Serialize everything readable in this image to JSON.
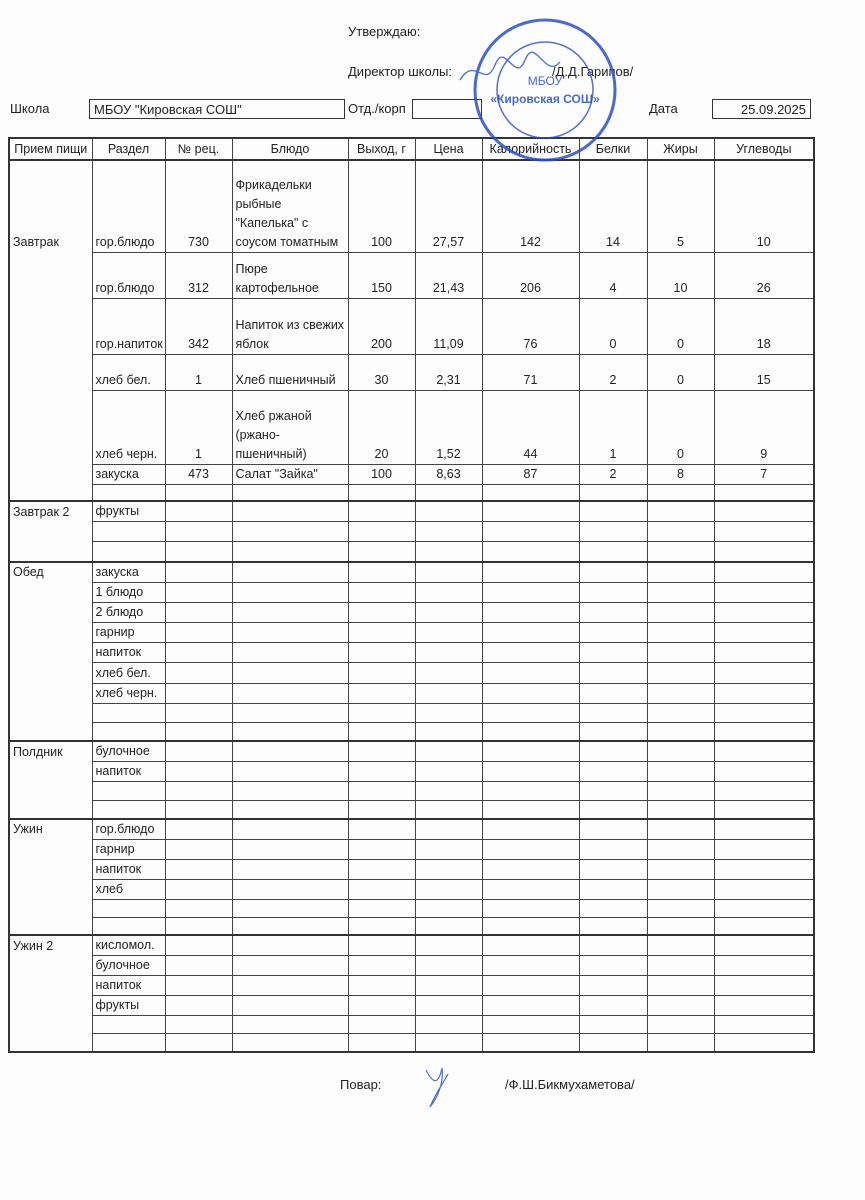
{
  "header": {
    "approve_label": "Утверждаю:",
    "director_label": "Директор школы:",
    "director_name": "/Д.Д.Гарипов/",
    "school_label": "Школа",
    "school_value": "МБОУ \"Кировская СОШ\"",
    "dept_label": "Отд./корп",
    "dept_value": "",
    "date_label": "Дата",
    "date_value": "25.09.2025"
  },
  "stamp": {
    "text": "МБОУ «Кировская СОШ»",
    "color": "#2a4fc9"
  },
  "table": {
    "columns": [
      "Прием пищи",
      "Раздел",
      "№ рец.",
      "Блюдо",
      "Выход, г",
      "Цена",
      "Калорийность",
      "Белки",
      "Жиры",
      "Углеводы"
    ],
    "sections": [
      {
        "meal": "Завтрак",
        "rows": [
          [
            "гор.блюдо",
            "730",
            "Фрикадельки рыбные \"Капелька\" с соусом томатным",
            "100",
            "27,57",
            "142",
            "14",
            "5",
            "10"
          ],
          [
            "гор.блюдо",
            "312",
            "Пюре картофельное",
            "150",
            "21,43",
            "206",
            "4",
            "10",
            "26"
          ],
          [
            "гор.напиток",
            "342",
            "Напиток из свежих яблок",
            "200",
            "11,09",
            "76",
            "0",
            "0",
            "18"
          ],
          [
            "хлеб бел.",
            "1",
            "Хлеб пшеничный",
            "30",
            "2,31",
            "71",
            "2",
            "0",
            "15"
          ],
          [
            "хлеб черн.",
            "1",
            "Хлеб ржаной (ржано-пшеничный)",
            "20",
            "1,52",
            "44",
            "1",
            "0",
            "9"
          ],
          [
            "закуска",
            "473",
            "Салат \"Зайка\"",
            "100",
            "8,63",
            "87",
            "2",
            "8",
            "7"
          ],
          [
            "",
            "",
            "",
            "",
            "",
            "",
            "",
            "",
            ""
          ]
        ]
      },
      {
        "meal": "Завтрак 2",
        "rows": [
          [
            "фрукты"
          ],
          [
            ""
          ],
          [
            ""
          ]
        ]
      },
      {
        "meal": "Обед",
        "rows": [
          [
            "закуска"
          ],
          [
            "1 блюдо"
          ],
          [
            "2 блюдо"
          ],
          [
            "гарнир"
          ],
          [
            "напиток"
          ],
          [
            "хлеб бел."
          ],
          [
            "хлеб черн."
          ],
          [
            ""
          ],
          [
            ""
          ]
        ]
      },
      {
        "meal": "Полдник",
        "rows": [
          [
            "булочное"
          ],
          [
            "напиток"
          ],
          [
            ""
          ],
          [
            ""
          ]
        ]
      },
      {
        "meal": "Ужин",
        "rows": [
          [
            "гор.блюдо"
          ],
          [
            "гарнир"
          ],
          [
            "напиток"
          ],
          [
            "хлеб"
          ],
          [
            ""
          ],
          [
            ""
          ]
        ]
      },
      {
        "meal": "Ужин 2",
        "rows": [
          [
            "кисломол."
          ],
          [
            "булочное"
          ],
          [
            "напиток"
          ],
          [
            "фрукты"
          ],
          [
            ""
          ],
          [
            ""
          ]
        ]
      }
    ]
  },
  "footer": {
    "cook_label": "Повар:",
    "cook_name": "/Ф.Ш.Бикмухаметова/"
  }
}
